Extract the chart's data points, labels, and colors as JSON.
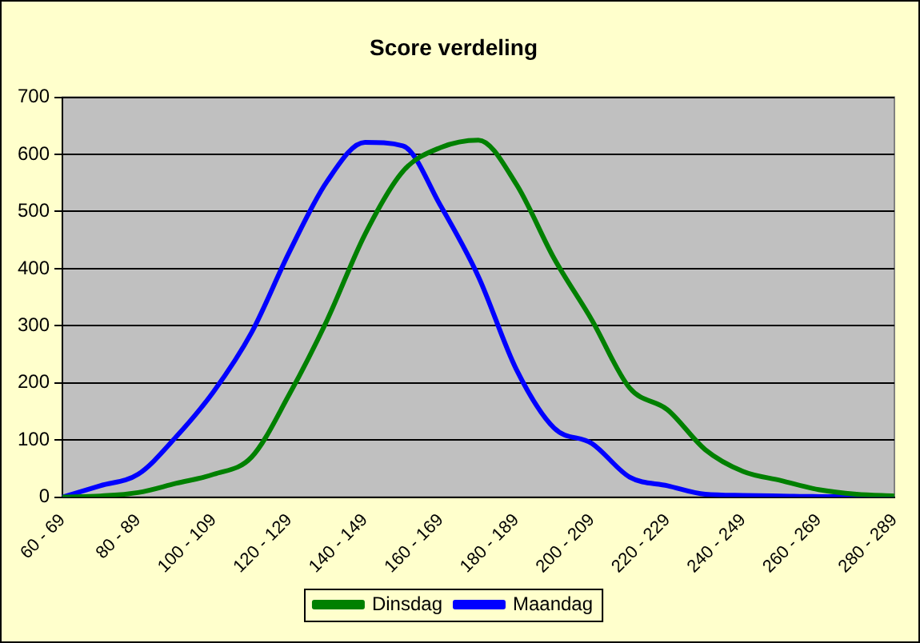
{
  "chart_data": {
    "type": "line",
    "title": "Score verdeling",
    "categories": [
      "60 - 69",
      null,
      "80 - 89",
      null,
      "100 - 109",
      null,
      "120 - 129",
      null,
      "140 - 149",
      null,
      "160 - 169",
      null,
      "180 - 189",
      null,
      "200 - 209",
      null,
      "220 - 229",
      null,
      "240 - 249",
      null,
      "260 - 269",
      null,
      "280 - 289"
    ],
    "series": [
      {
        "name": "Dinsdag",
        "color": "#008000",
        "values": [
          0,
          2,
          8,
          24,
          40,
          70,
          180,
          310,
          460,
          570,
          612,
          625,
          548,
          418,
          310,
          191,
          153,
          83,
          45,
          29,
          13,
          5,
          2
        ]
      },
      {
        "name": "Maandag",
        "color": "#0000ff",
        "values": [
          0,
          20,
          40,
          105,
          185,
          288,
          429,
          553,
          621,
          615,
          510,
          386,
          224,
          121,
          94,
          35,
          20,
          5,
          3,
          2,
          1,
          1,
          0
        ]
      }
    ],
    "ylim": [
      0,
      700
    ],
    "yticks": [
      0,
      100,
      200,
      300,
      400,
      500,
      600,
      700
    ],
    "grid": "y",
    "legend": "bottom",
    "marker": "none",
    "line_style": "solid"
  }
}
